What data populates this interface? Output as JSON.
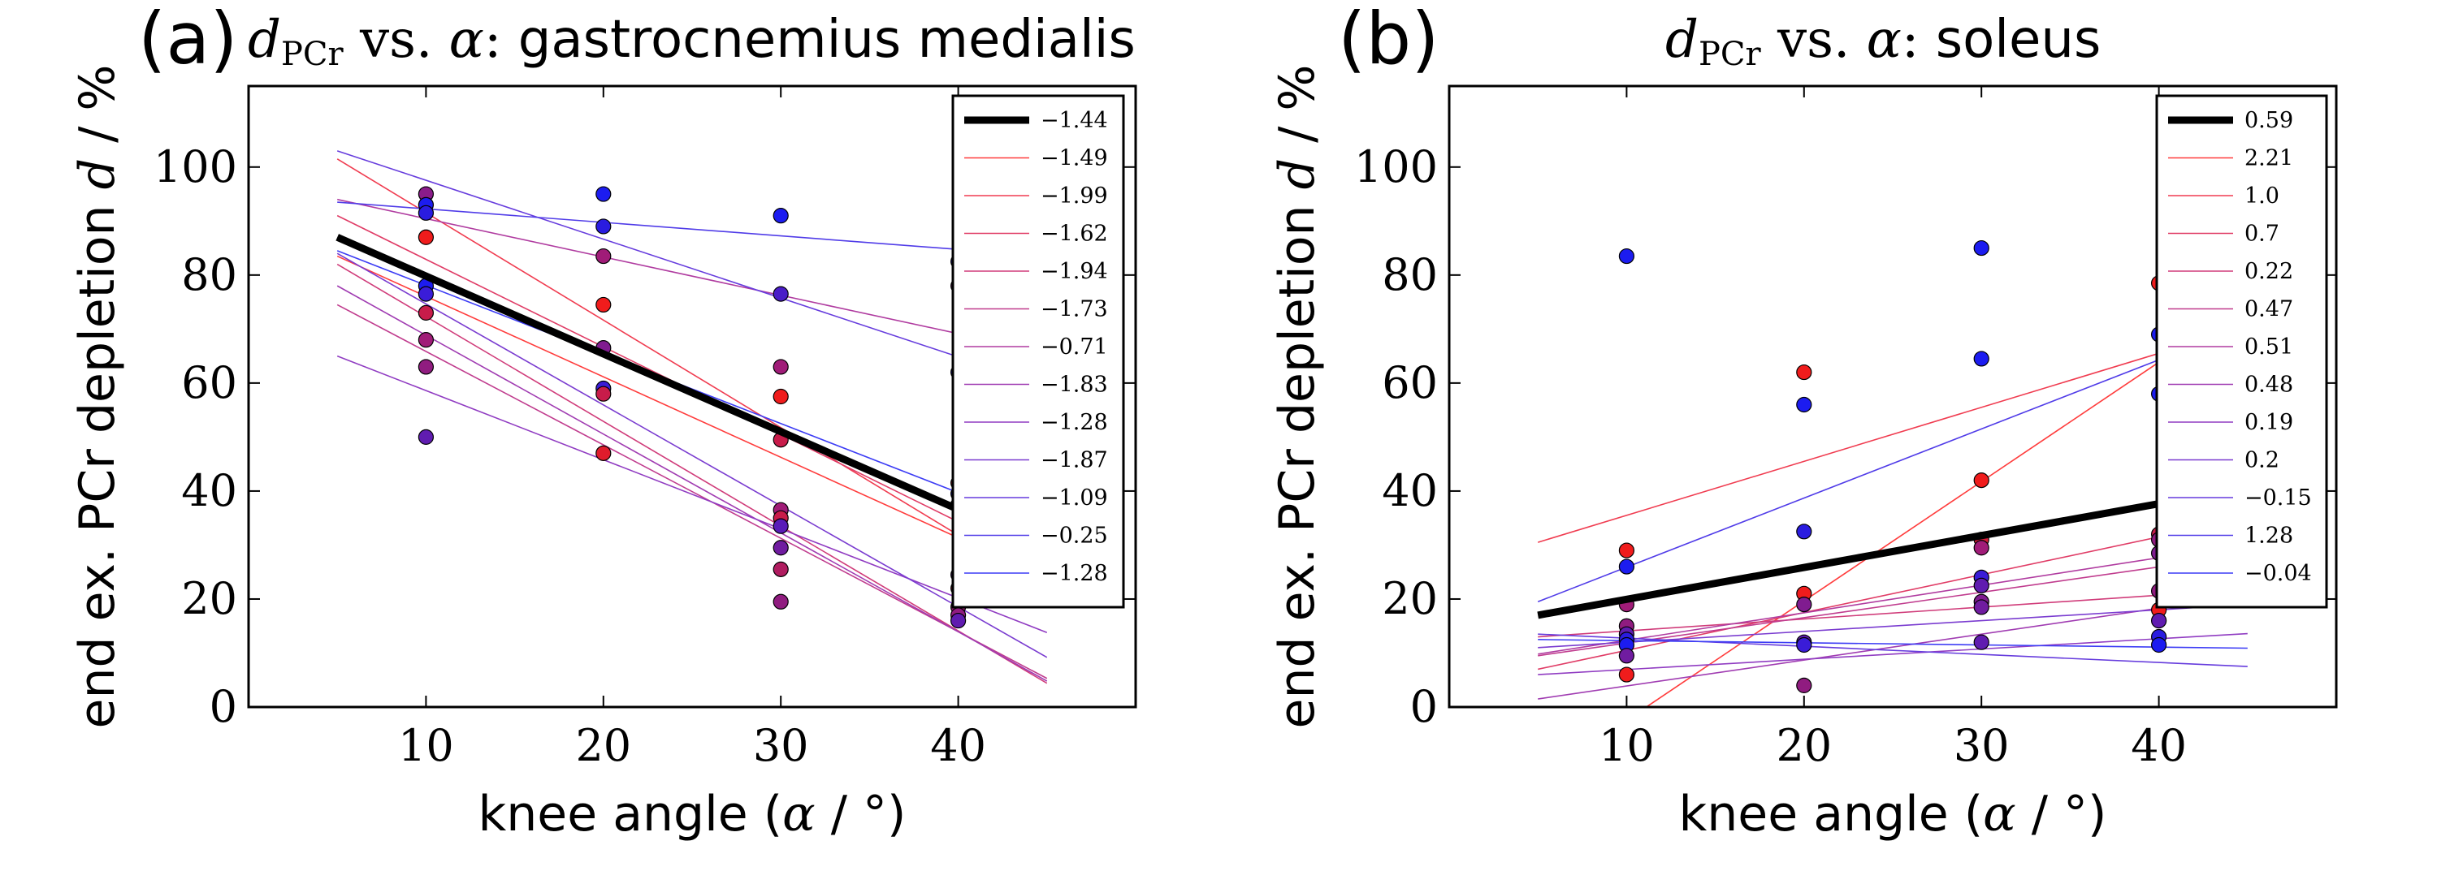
{
  "chart_data": [
    {
      "type": "scatter",
      "panel": "(a)",
      "title_math": "d",
      "title_sub": "PCr",
      "title_vs": "vs.",
      "title_alpha": "α",
      "title_colon": ":",
      "title_text": "gastrocnemius medialis",
      "xlabel_text": "knee angle (",
      "xlabel_math": "α",
      "xlabel_unit": " / °)",
      "ylabel_text": "end ex.  PCr depletion ",
      "ylabel_math": "d",
      "ylabel_unit": " / %",
      "xlim": [
        0,
        50
      ],
      "ylim": [
        0,
        115
      ],
      "xticks": [
        "10",
        "20",
        "30",
        "40"
      ],
      "xtick_values": [
        10,
        20,
        30,
        40
      ],
      "yticks": [
        "0",
        "20",
        "40",
        "60",
        "80",
        "100"
      ],
      "ytick_values": [
        0,
        20,
        40,
        60,
        80,
        100
      ],
      "fit_range": [
        5,
        45
      ],
      "mean_fit": {
        "label": "−1.44",
        "slope": -1.44,
        "y_at_5": 87,
        "color": "#000000"
      },
      "series": [
        {
          "label": "−1.49",
          "slope": -1.49,
          "y_at_5": 83.5,
          "color": "#ff3c3c"
        },
        {
          "label": "−1.99",
          "slope": -1.99,
          "y_at_5": 101.5,
          "color": "#f03c50"
        },
        {
          "label": "−1.62",
          "slope": -1.62,
          "y_at_5": 91,
          "color": "#e03c66"
        },
        {
          "label": "−1.94",
          "slope": -1.94,
          "y_at_5": 82,
          "color": "#d03c7a"
        },
        {
          "label": "−1.73",
          "slope": -1.73,
          "y_at_5": 74.5,
          "color": "#c03c8e"
        },
        {
          "label": "−0.71",
          "slope": -0.71,
          "y_at_5": 94,
          "color": "#b03ca0"
        },
        {
          "label": "−1.83",
          "slope": -1.83,
          "y_at_5": 78,
          "color": "#a03cb2"
        },
        {
          "label": "−1.28",
          "slope": -1.28,
          "y_at_5": 65,
          "color": "#903cc2"
        },
        {
          "label": "−1.87",
          "slope": -1.87,
          "y_at_5": 84,
          "color": "#7a3cd0"
        },
        {
          "label": "−1.09",
          "slope": -1.09,
          "y_at_5": 103,
          "color": "#663cdd"
        },
        {
          "label": "−0.25",
          "slope": -0.25,
          "y_at_5": 93.5,
          "color": "#503ce8"
        },
        {
          "label": "−1.28",
          "slope": -1.28,
          "y_at_5": 84.5,
          "color": "#3c3cf5"
        }
      ],
      "points": [
        {
          "x": 10,
          "y": 95,
          "color": "#8a1c8a"
        },
        {
          "x": 10,
          "y": 93,
          "color": "#1c1cf0"
        },
        {
          "x": 10,
          "y": 91.5,
          "color": "#2a1ce0"
        },
        {
          "x": 10,
          "y": 87,
          "color": "#f01c1c"
        },
        {
          "x": 10,
          "y": 78,
          "color": "#1c1cf0"
        },
        {
          "x": 10,
          "y": 76.5,
          "color": "#3a1cd8"
        },
        {
          "x": 10,
          "y": 73,
          "color": "#c81c4a"
        },
        {
          "x": 10,
          "y": 68,
          "color": "#a01c78"
        },
        {
          "x": 10,
          "y": 63,
          "color": "#901c80"
        },
        {
          "x": 10,
          "y": 50,
          "color": "#601cb0"
        },
        {
          "x": 20,
          "y": 95,
          "color": "#1c1cf0"
        },
        {
          "x": 20,
          "y": 89,
          "color": "#2a1ce0"
        },
        {
          "x": 20,
          "y": 83.5,
          "color": "#a01c78"
        },
        {
          "x": 20,
          "y": 74.5,
          "color": "#f01c1c"
        },
        {
          "x": 20,
          "y": 66.5,
          "color": "#801c90"
        },
        {
          "x": 20,
          "y": 59,
          "color": "#3a1cd8"
        },
        {
          "x": 20,
          "y": 58,
          "color": "#c81c4a"
        },
        {
          "x": 20,
          "y": 47,
          "color": "#e01c2c"
        },
        {
          "x": 30,
          "y": 91,
          "color": "#1c1cf0"
        },
        {
          "x": 30,
          "y": 76.5,
          "color": "#4a1cc8"
        },
        {
          "x": 30,
          "y": 63,
          "color": "#a01c78"
        },
        {
          "x": 30,
          "y": 57.5,
          "color": "#f01c1c"
        },
        {
          "x": 30,
          "y": 49.5,
          "color": "#c81c4a"
        },
        {
          "x": 30,
          "y": 36.5,
          "color": "#a01c78"
        },
        {
          "x": 30,
          "y": 35,
          "color": "#c81c4a"
        },
        {
          "x": 30,
          "y": 33.5,
          "color": "#5a1cb8"
        },
        {
          "x": 30,
          "y": 29.5,
          "color": "#701ca0"
        },
        {
          "x": 30,
          "y": 25.5,
          "color": "#b01c60"
        },
        {
          "x": 30,
          "y": 19.5,
          "color": "#901c80"
        },
        {
          "x": 40,
          "y": 82.5,
          "color": "#2a1ce0"
        },
        {
          "x": 40,
          "y": 78,
          "color": "#901c80"
        },
        {
          "x": 40,
          "y": 62,
          "color": "#2a1ce0"
        },
        {
          "x": 40,
          "y": 41.5,
          "color": "#d81c3a"
        },
        {
          "x": 40,
          "y": 39.5,
          "color": "#1c1cf0"
        },
        {
          "x": 40,
          "y": 37.5,
          "color": "#f01c1c"
        },
        {
          "x": 40,
          "y": 24.5,
          "color": "#701ca0"
        },
        {
          "x": 40,
          "y": 22,
          "color": "#d81c3a"
        },
        {
          "x": 40,
          "y": 18.5,
          "color": "#a01c78"
        },
        {
          "x": 40,
          "y": 17,
          "color": "#901c80"
        },
        {
          "x": 40,
          "y": 16,
          "color": "#601cb0"
        }
      ]
    },
    {
      "type": "scatter",
      "panel": "(b)",
      "title_math": "d",
      "title_sub": "PCr",
      "title_vs": "vs.",
      "title_alpha": "α",
      "title_colon": ":",
      "title_text": "soleus",
      "xlabel_text": "knee angle (",
      "xlabel_math": "α",
      "xlabel_unit": " / °)",
      "ylabel_text": "end ex.  PCr depletion ",
      "ylabel_math": "d",
      "ylabel_unit": " / %",
      "xlim": [
        0,
        50
      ],
      "ylim": [
        0,
        115
      ],
      "xticks": [
        "10",
        "20",
        "30",
        "40"
      ],
      "xtick_values": [
        10,
        20,
        30,
        40
      ],
      "yticks": [
        "0",
        "20",
        "40",
        "60",
        "80",
        "100"
      ],
      "ytick_values": [
        0,
        20,
        40,
        60,
        80,
        100
      ],
      "fit_range": [
        5,
        45
      ],
      "mean_fit": {
        "label": "0.59",
        "slope": 0.59,
        "y_at_5": 17,
        "color": "#000000"
      },
      "series": [
        {
          "label": "2.21",
          "slope": 2.21,
          "y_at_5": -13.5,
          "color": "#ff3c3c"
        },
        {
          "label": "1.0",
          "slope": 1.0,
          "y_at_5": 30.5,
          "color": "#f03c50"
        },
        {
          "label": "0.7",
          "slope": 0.7,
          "y_at_5": 7,
          "color": "#e03c66"
        },
        {
          "label": "0.22",
          "slope": 0.22,
          "y_at_5": 13,
          "color": "#d03c7a"
        },
        {
          "label": "0.47",
          "slope": 0.47,
          "y_at_5": 9.5,
          "color": "#c03c8e"
        },
        {
          "label": "0.51",
          "slope": 0.51,
          "y_at_5": 9.8,
          "color": "#b03ca0"
        },
        {
          "label": "0.48",
          "slope": 0.48,
          "y_at_5": 1.5,
          "color": "#a03cb2"
        },
        {
          "label": "0.19",
          "slope": 0.19,
          "y_at_5": 6,
          "color": "#903cc2"
        },
        {
          "label": "0.2",
          "slope": 0.2,
          "y_at_5": 11,
          "color": "#7a3cd0"
        },
        {
          "label": "−0.15",
          "slope": -0.15,
          "y_at_5": 13.5,
          "color": "#663cdd"
        },
        {
          "label": "1.28",
          "slope": 1.28,
          "y_at_5": 19.5,
          "color": "#503ce8"
        },
        {
          "label": "−0.04",
          "slope": -0.04,
          "y_at_5": 12.5,
          "color": "#3c3cf5"
        }
      ],
      "points": [
        {
          "x": 10,
          "y": 83.5,
          "color": "#1c1cf0"
        },
        {
          "x": 10,
          "y": 29,
          "color": "#f01c1c"
        },
        {
          "x": 10,
          "y": 26,
          "color": "#1c1cf0"
        },
        {
          "x": 10,
          "y": 19,
          "color": "#a01c78"
        },
        {
          "x": 10,
          "y": 15,
          "color": "#901c80"
        },
        {
          "x": 10,
          "y": 13.5,
          "color": "#601cb0"
        },
        {
          "x": 10,
          "y": 12.5,
          "color": "#2a1ce0"
        },
        {
          "x": 10,
          "y": 11.5,
          "color": "#1c1cf0"
        },
        {
          "x": 10,
          "y": 9.5,
          "color": "#701ca0"
        },
        {
          "x": 10,
          "y": 6,
          "color": "#f01c1c"
        },
        {
          "x": 20,
          "y": 62,
          "color": "#f01c1c"
        },
        {
          "x": 20,
          "y": 56,
          "color": "#1c1cf0"
        },
        {
          "x": 20,
          "y": 32.5,
          "color": "#2a1ce0"
        },
        {
          "x": 20,
          "y": 21,
          "color": "#f01c1c"
        },
        {
          "x": 20,
          "y": 19,
          "color": "#801c90"
        },
        {
          "x": 20,
          "y": 12,
          "color": "#601cb0"
        },
        {
          "x": 20,
          "y": 11.5,
          "color": "#3a1cd8"
        },
        {
          "x": 20,
          "y": 4,
          "color": "#901c80"
        },
        {
          "x": 30,
          "y": 85,
          "color": "#1c1cf0"
        },
        {
          "x": 30,
          "y": 64.5,
          "color": "#1c1cf0"
        },
        {
          "x": 30,
          "y": 42,
          "color": "#f01c1c"
        },
        {
          "x": 30,
          "y": 31,
          "color": "#d81c3a"
        },
        {
          "x": 30,
          "y": 29.5,
          "color": "#a01c78"
        },
        {
          "x": 30,
          "y": 24,
          "color": "#3a1cd8"
        },
        {
          "x": 30,
          "y": 22.5,
          "color": "#601cb0"
        },
        {
          "x": 30,
          "y": 19.5,
          "color": "#801c90"
        },
        {
          "x": 30,
          "y": 18.5,
          "color": "#701ca0"
        },
        {
          "x": 30,
          "y": 12,
          "color": "#601cb0"
        },
        {
          "x": 40,
          "y": 78.5,
          "color": "#f01c1c"
        },
        {
          "x": 40,
          "y": 69,
          "color": "#1c1cf0"
        },
        {
          "x": 40,
          "y": 58,
          "color": "#1c1cf0"
        },
        {
          "x": 40,
          "y": 32,
          "color": "#c81c4a"
        },
        {
          "x": 40,
          "y": 31,
          "color": "#901c80"
        },
        {
          "x": 40,
          "y": 28.5,
          "color": "#801c90"
        },
        {
          "x": 40,
          "y": 21.5,
          "color": "#901c80"
        },
        {
          "x": 40,
          "y": 18,
          "color": "#f01c1c"
        },
        {
          "x": 40,
          "y": 16,
          "color": "#601cb0"
        },
        {
          "x": 40,
          "y": 13,
          "color": "#2a1ce0"
        },
        {
          "x": 40,
          "y": 11.5,
          "color": "#1c1cf0"
        }
      ]
    }
  ]
}
